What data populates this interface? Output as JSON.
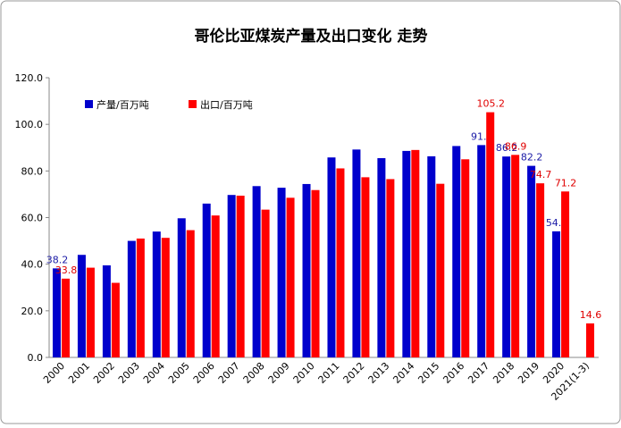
{
  "chart_data": {
    "type": "bar",
    "title": "哥伦比亚煤炭产量及出口变化 走势",
    "categories": [
      "2000",
      "2001",
      "2002",
      "2003",
      "2004",
      "2005",
      "2006",
      "2007",
      "2008",
      "2009",
      "2010",
      "2011",
      "2012",
      "2013",
      "2014",
      "2015",
      "2016",
      "2017",
      "2018",
      "2019",
      "2020",
      "2021(1-3)"
    ],
    "series": [
      {
        "name": "产量/百万吨",
        "color": "#0000cc",
        "values": [
          38.2,
          44,
          39.5,
          50,
          54,
          59.7,
          66,
          69.7,
          73.5,
          72.8,
          74.4,
          85.8,
          89.2,
          85.5,
          88.6,
          86.3,
          90.7,
          91.1,
          86.2,
          82.2,
          54.1,
          null
        ],
        "labeled": [
          0,
          17,
          18,
          19,
          20
        ],
        "label_color": "#1a1aa6"
      },
      {
        "name": "出口/百万吨",
        "color": "#ff0000",
        "values": [
          33.8,
          38.5,
          32,
          51,
          51.3,
          54.6,
          60.9,
          69.4,
          63.4,
          68.5,
          71.8,
          81.1,
          77.3,
          76.5,
          89,
          74.5,
          85,
          105.2,
          86.9,
          74.7,
          71.2,
          14.6
        ],
        "labeled": [
          0,
          17,
          18,
          19,
          20,
          21
        ],
        "label_color": "#e00000"
      }
    ],
    "ylim": [
      0,
      120
    ],
    "yticks": [
      {
        "value": 0,
        "label": "0.0"
      },
      {
        "value": 20,
        "label": "20.0"
      },
      {
        "value": 40,
        "label": "40.0"
      },
      {
        "value": 60,
        "label": "60.0"
      },
      {
        "value": 80,
        "label": "80.0"
      },
      {
        "value": 100,
        "label": "100.0"
      },
      {
        "value": 120,
        "label": "120.0"
      }
    ],
    "legend": "top-left"
  }
}
